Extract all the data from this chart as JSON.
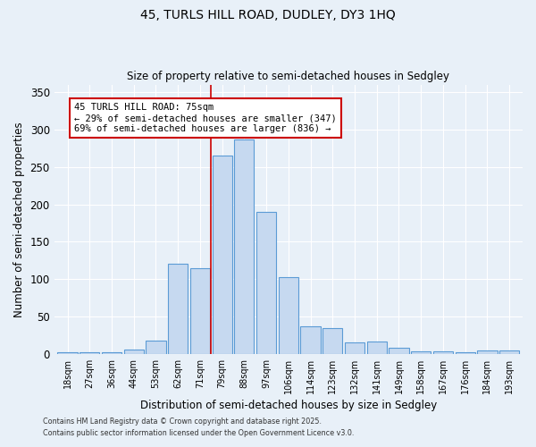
{
  "title1": "45, TURLS HILL ROAD, DUDLEY, DY3 1HQ",
  "title2": "Size of property relative to semi-detached houses in Sedgley",
  "xlabel": "Distribution of semi-detached houses by size in Sedgley",
  "ylabel": "Number of semi-detached properties",
  "categories": [
    "18sqm",
    "27sqm",
    "36sqm",
    "44sqm",
    "53sqm",
    "62sqm",
    "71sqm",
    "79sqm",
    "88sqm",
    "97sqm",
    "106sqm",
    "114sqm",
    "123sqm",
    "132sqm",
    "141sqm",
    "149sqm",
    "158sqm",
    "167sqm",
    "176sqm",
    "184sqm",
    "193sqm"
  ],
  "values": [
    2,
    2,
    2,
    6,
    18,
    120,
    115,
    265,
    287,
    190,
    103,
    37,
    35,
    15,
    17,
    8,
    3,
    4,
    2,
    5,
    5
  ],
  "bar_color": "#c6d9f0",
  "bar_edge_color": "#5b9bd5",
  "background_color": "#e8f0f8",
  "grid_color": "#ffffff",
  "annotation_text": "45 TURLS HILL ROAD: 75sqm\n← 29% of semi-detached houses are smaller (347)\n69% of semi-detached houses are larger (836) →",
  "annotation_box_color": "#ffffff",
  "annotation_border_color": "#cc0000",
  "ylim": [
    0,
    360
  ],
  "yticks": [
    0,
    50,
    100,
    150,
    200,
    250,
    300,
    350
  ],
  "footnote1": "Contains HM Land Registry data © Crown copyright and database right 2025.",
  "footnote2": "Contains public sector information licensed under the Open Government Licence v3.0."
}
